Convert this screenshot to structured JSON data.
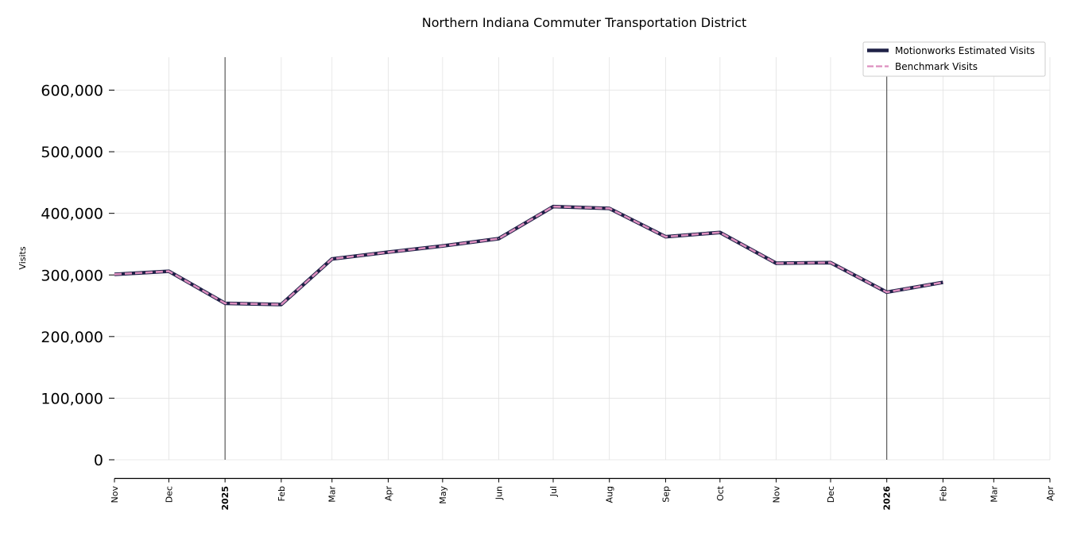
{
  "chart_data": {
    "type": "line",
    "title": "Northern Indiana Commuter Transportation District",
    "xlabel": "",
    "ylabel": "Visits",
    "x": [
      "2024-11",
      "2024-12",
      "2025-01",
      "2025-02",
      "2025-03",
      "2025-04",
      "2025-05",
      "2025-06",
      "2025-07",
      "2025-08",
      "2025-09",
      "2025-10",
      "2025-11",
      "2025-12",
      "2026-01",
      "2026-02"
    ],
    "x_tick_labels": [
      "Nov",
      "Dec",
      "2025",
      "Feb",
      "Mar",
      "Apr",
      "May",
      "Jun",
      "Jul",
      "Aug",
      "Sep",
      "Oct",
      "Nov",
      "Dec",
      "2026",
      "Feb",
      "Mar",
      "Apr"
    ],
    "year_tick_labels": [
      "2025",
      "2026"
    ],
    "year_marker_labels": [
      "2025",
      "2026"
    ],
    "ylim": [
      -30000,
      655000
    ],
    "yticks": [
      0,
      100000,
      200000,
      300000,
      400000,
      500000,
      600000
    ],
    "ytick_labels": [
      "0",
      "100,000",
      "200,000",
      "300,000",
      "400,000",
      "500,000",
      "600,000"
    ],
    "grid": true,
    "legend_position": "top-right",
    "series": [
      {
        "name": "Motionworks Estimated Visits",
        "color": "#1f2147",
        "style": "solid",
        "values": [
          301000,
          306000,
          254000,
          252000,
          326000,
          337000,
          347000,
          359000,
          411000,
          408000,
          362000,
          369000,
          319000,
          320000,
          272000,
          288000
        ]
      },
      {
        "name": "Benchmark Visits",
        "color": "#dd8fbf",
        "style": "dashed",
        "values": [
          301000,
          306000,
          254000,
          252000,
          326000,
          337000,
          347000,
          359000,
          411000,
          408000,
          362000,
          369000,
          319000,
          320000,
          272000,
          288000
        ]
      }
    ],
    "colors": {
      "grid": "#e2e2e2",
      "axis": "#000000",
      "year_line": "#3b3b3b"
    }
  }
}
